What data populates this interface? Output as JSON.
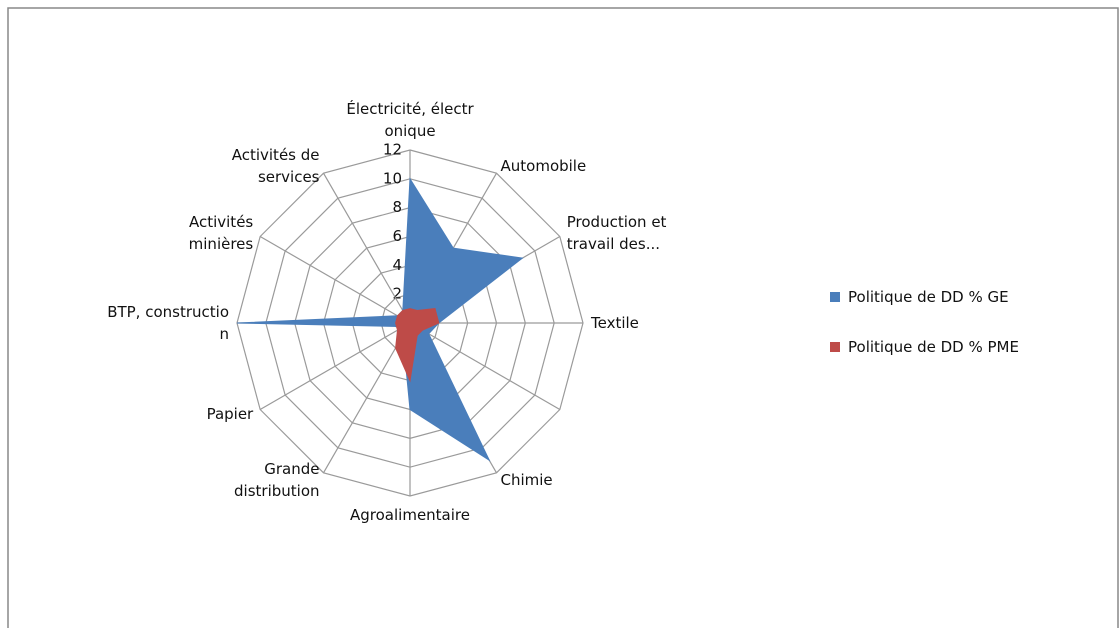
{
  "chart_data": {
    "type": "radar",
    "categories": [
      "Électricité, électr\nonique",
      "Automobile",
      "Production et\ntravail des...",
      "Textile",
      null,
      "Chimie",
      "Agroalimentaire",
      "Grande\ndistribution",
      "Papier",
      "BTP, constructio\nn",
      "Activités\nminières",
      "Activités de\nservices"
    ],
    "series": [
      {
        "name": "Politique de DD % GE",
        "color": "#4a7ebb",
        "values": [
          10,
          6,
          9,
          2,
          1.5,
          11,
          6,
          1,
          0.5,
          12,
          1,
          1
        ]
      },
      {
        "name": "Politique de DD % PME",
        "color": "#be4b48",
        "values": [
          1,
          1,
          2,
          2,
          1,
          1,
          4,
          2,
          1,
          1,
          1,
          1
        ]
      }
    ],
    "ylim": [
      0,
      12
    ],
    "yticks": [
      0,
      2,
      4,
      6,
      8,
      10,
      12
    ],
    "grid": true,
    "legend": "right"
  }
}
